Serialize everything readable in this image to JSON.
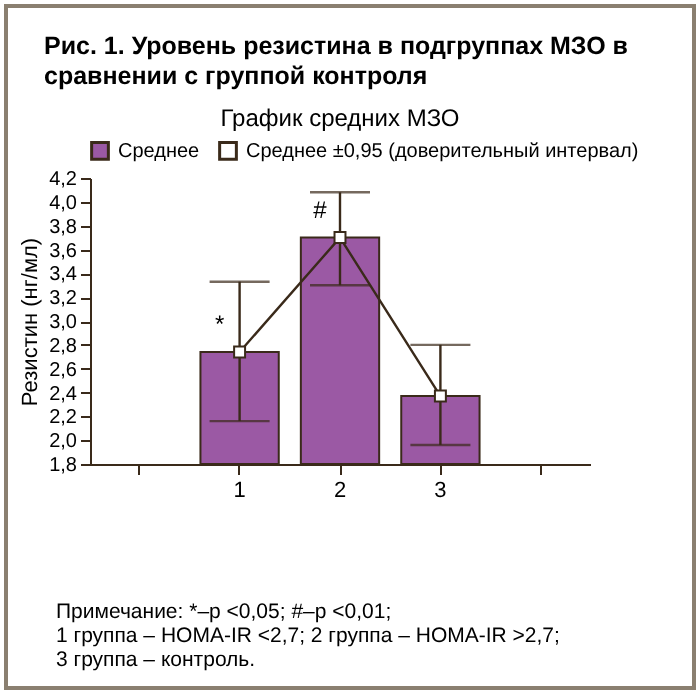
{
  "chart_data": {
    "type": "bar",
    "title": "Рис. 1. Уровень резистина в подгруппах МЗО в сравнении с группой контроля",
    "subtitle": "График средних МЗО",
    "ylabel": "Резистин (нг/мл)",
    "categories": [
      null,
      "1",
      "2",
      "3",
      null
    ],
    "series": [
      {
        "name": "Среднее",
        "color": "#9b59a4",
        "values": [
          null,
          2.74,
          3.7,
          2.37,
          null
        ],
        "errors": [
          null,
          [
            2.16,
            3.33
          ],
          [
            3.3,
            4.08
          ],
          [
            1.96,
            2.8
          ],
          null
        ]
      },
      {
        "type": "line",
        "color": "#3a2a1a",
        "marker": "square",
        "values": [
          null,
          2.74,
          3.7,
          2.37,
          null
        ]
      }
    ],
    "ylim": [
      1.8,
      4.2
    ],
    "yticks": [
      {
        "value": 1.8,
        "label": "1,8"
      },
      {
        "value": 2.0,
        "label": "2,0"
      },
      {
        "value": 2.2,
        "label": "2,2"
      },
      {
        "value": 2.4,
        "label": "2,4"
      },
      {
        "value": 2.6,
        "label": "2,6"
      },
      {
        "value": 2.8,
        "label": "2,8"
      },
      {
        "value": 3.0,
        "label": "3,0"
      },
      {
        "value": 3.2,
        "label": "3,2"
      },
      {
        "value": 3.4,
        "label": "3,4"
      },
      {
        "value": 3.6,
        "label": "3,6"
      },
      {
        "value": 3.8,
        "label": "3,8"
      },
      {
        "value": 4.0,
        "label": "4,0"
      },
      {
        "value": 4.2,
        "label": "4,2"
      }
    ],
    "grid": false,
    "legend": "top",
    "annotations": [
      "Среднее ±0,95 (доверительный интервал)",
      {
        "text": "*",
        "x": "1",
        "y": 2.74
      },
      {
        "text": "#",
        "x": "2",
        "y": 3.7
      },
      "Примечание: *–p <0,05; #–p <0,01;",
      "1 группа – HOMA-IR <2,7; 2 группа – HOMA-IR >2,7;",
      "3 группа – контроль."
    ]
  }
}
